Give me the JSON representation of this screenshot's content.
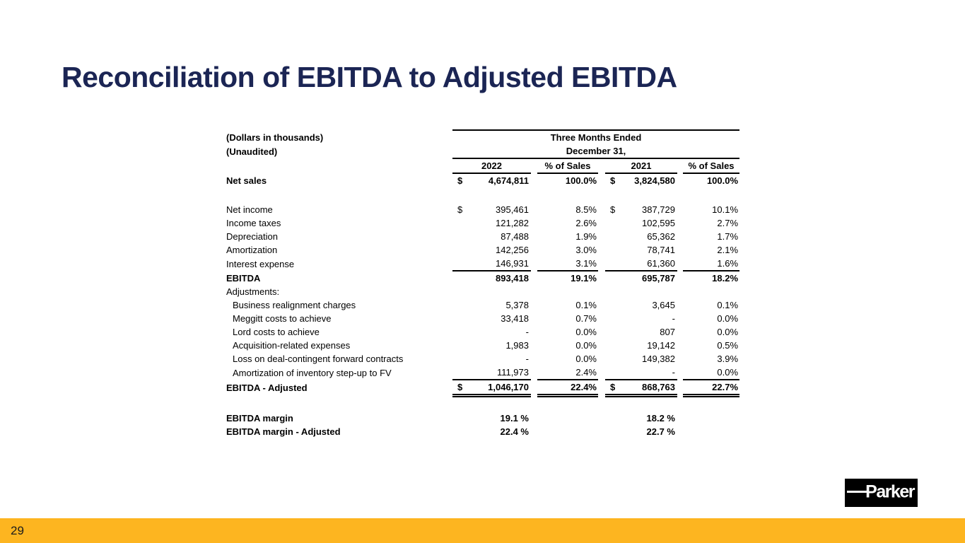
{
  "slide": {
    "title": "Reconciliation of EBITDA to Adjusted EBITDA",
    "page_number": "29",
    "colors": {
      "title_text": "#1B2554",
      "footer_bar": "#FDB520",
      "logo_background": "#000000",
      "logo_text": "#FFFFFF",
      "table_text": "#000000"
    }
  },
  "logo": {
    "text": "Parker"
  },
  "table": {
    "currency_symbol": "$",
    "left_header_lines": [
      "(Dollars in thousands)",
      "(Unaudited)"
    ],
    "group_header_line1": "Three Months Ended",
    "group_header_line2": "December 31,",
    "columns": [
      "2022",
      "% of Sales",
      "2021",
      "% of Sales"
    ],
    "rows": [
      {
        "label": "Net sales",
        "bold": true,
        "dollar": true,
        "v2022": "4,674,811",
        "p2022": "100.0%",
        "v2021": "3,824,580",
        "p2021": "100.0%"
      },
      {
        "blank": true
      },
      {
        "label": "Net income",
        "dollar": true,
        "v2022": "395,461",
        "p2022": "8.5%",
        "v2021": "387,729",
        "p2021": "10.1%"
      },
      {
        "label": "Income taxes",
        "v2022": "121,282",
        "p2022": "2.6%",
        "v2021": "102,595",
        "p2021": "2.7%"
      },
      {
        "label": "Depreciation",
        "v2022": "87,488",
        "p2022": "1.9%",
        "v2021": "65,362",
        "p2021": "1.7%"
      },
      {
        "label": "Amortization",
        "v2022": "142,256",
        "p2022": "3.0%",
        "v2021": "78,741",
        "p2021": "2.1%"
      },
      {
        "label": "Interest expense",
        "underline": true,
        "v2022": "146,931",
        "p2022": "3.1%",
        "v2021": "61,360",
        "p2021": "1.6%"
      },
      {
        "label": "EBITDA",
        "bold": true,
        "v2022": "893,418",
        "p2022": "19.1%",
        "v2021": "695,787",
        "p2021": "18.2%"
      },
      {
        "label": "Adjustments:"
      },
      {
        "label": "Business realignment charges",
        "indent": true,
        "v2022": "5,378",
        "p2022": "0.1%",
        "v2021": "3,645",
        "p2021": "0.1%"
      },
      {
        "label": "Meggitt costs to achieve",
        "indent": true,
        "v2022": "33,418",
        "p2022": "0.7%",
        "v2021": "-",
        "p2021": "0.0%"
      },
      {
        "label": "Lord costs to achieve",
        "indent": true,
        "v2022": "-",
        "p2022": "0.0%",
        "v2021": "807",
        "p2021": "0.0%"
      },
      {
        "label": "Acquisition-related expenses",
        "indent": true,
        "v2022": "1,983",
        "p2022": "0.0%",
        "v2021": "19,142",
        "p2021": "0.5%"
      },
      {
        "label": "Loss on deal-contingent forward contracts",
        "indent": true,
        "v2022": "-",
        "p2022": "0.0%",
        "v2021": "149,382",
        "p2021": "3.9%"
      },
      {
        "label": "Amortization of inventory step-up to FV",
        "indent": true,
        "underline": true,
        "v2022": "111,973",
        "p2022": "2.4%",
        "v2021": "-",
        "p2021": "0.0%"
      },
      {
        "label": "EBITDA - Adjusted",
        "bold": true,
        "dollar": true,
        "double_underline": true,
        "v2022": "1,046,170",
        "p2022": "22.4%",
        "v2021": "868,763",
        "p2021": "22.7%"
      },
      {
        "blank": true
      },
      {
        "label": "EBITDA margin",
        "bold": true,
        "v2022": "19.1 %",
        "v2021": "18.2 %"
      },
      {
        "label": "EBITDA margin - Adjusted",
        "bold": true,
        "v2022": "22.4 %",
        "v2021": "22.7 %"
      }
    ]
  }
}
